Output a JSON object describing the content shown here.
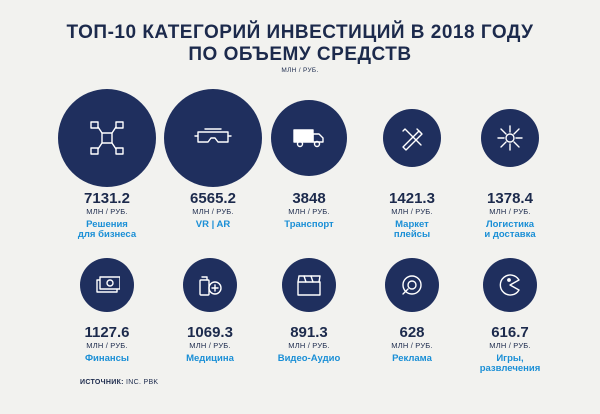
{
  "title_line1": "ТОП-10 КАТЕГОРИЙ ИНВЕСТИЦИЙ В 2018 ГОДУ",
  "title_line2": "ПО ОБЪЕМУ СРЕДСТВ",
  "unit_top": "МЛН / РУБ.",
  "source_label": "ИСТОЧНИК:",
  "source_value": "INC. PBK",
  "colors": {
    "circle": "#1f2f5e",
    "label": "#1a8fd6",
    "text": "#1c2a4c",
    "background": "#f2f2ef"
  },
  "chart_data": {
    "type": "bubble",
    "title": "ТОП-10 КАТЕГОРИЙ ИНВЕСТИЦИЙ В 2018 ГОДУ ПО ОБЪЕМУ СРЕДСТВ",
    "unit": "МЛН / РУБ.",
    "items": [
      {
        "value": "7131.2",
        "unit": "МЛН / РУБ.",
        "label_lines": [
          "Решения",
          "для бизнеса"
        ],
        "icon": "network-icon"
      },
      {
        "value": "6565.2",
        "unit": "МЛН / РУБ.",
        "label_lines": [
          "VR | AR"
        ],
        "icon": "vr-headset-icon"
      },
      {
        "value": "3848",
        "unit": "МЛН / РУБ.",
        "label_lines": [
          "Транспорт"
        ],
        "icon": "truck-icon"
      },
      {
        "value": "1421.3",
        "unit": "МЛН / РУБ.",
        "label_lines": [
          "Маркет",
          "плейсы"
        ],
        "icon": "tools-icon"
      },
      {
        "value": "1378.4",
        "unit": "МЛН / РУБ.",
        "label_lines": [
          "Логистика",
          "и доставка"
        ],
        "icon": "logistics-icon"
      },
      {
        "value": "1127.6",
        "unit": "МЛН / РУБ.",
        "label_lines": [
          "Финансы"
        ],
        "icon": "money-icon"
      },
      {
        "value": "1069.3",
        "unit": "МЛН / РУБ.",
        "label_lines": [
          "Медицина"
        ],
        "icon": "medicine-icon"
      },
      {
        "value": "891.3",
        "unit": "МЛН / РУБ.",
        "label_lines": [
          "Видео-Аудио"
        ],
        "icon": "clapperboard-icon"
      },
      {
        "value": "628",
        "unit": "МЛН / РУБ.",
        "label_lines": [
          "Реклама"
        ],
        "icon": "megaphone-icon"
      },
      {
        "value": "616.7",
        "unit": "МЛН / РУБ.",
        "label_lines": [
          "Игры,",
          "развлечения"
        ],
        "icon": "pacman-icon"
      }
    ]
  }
}
